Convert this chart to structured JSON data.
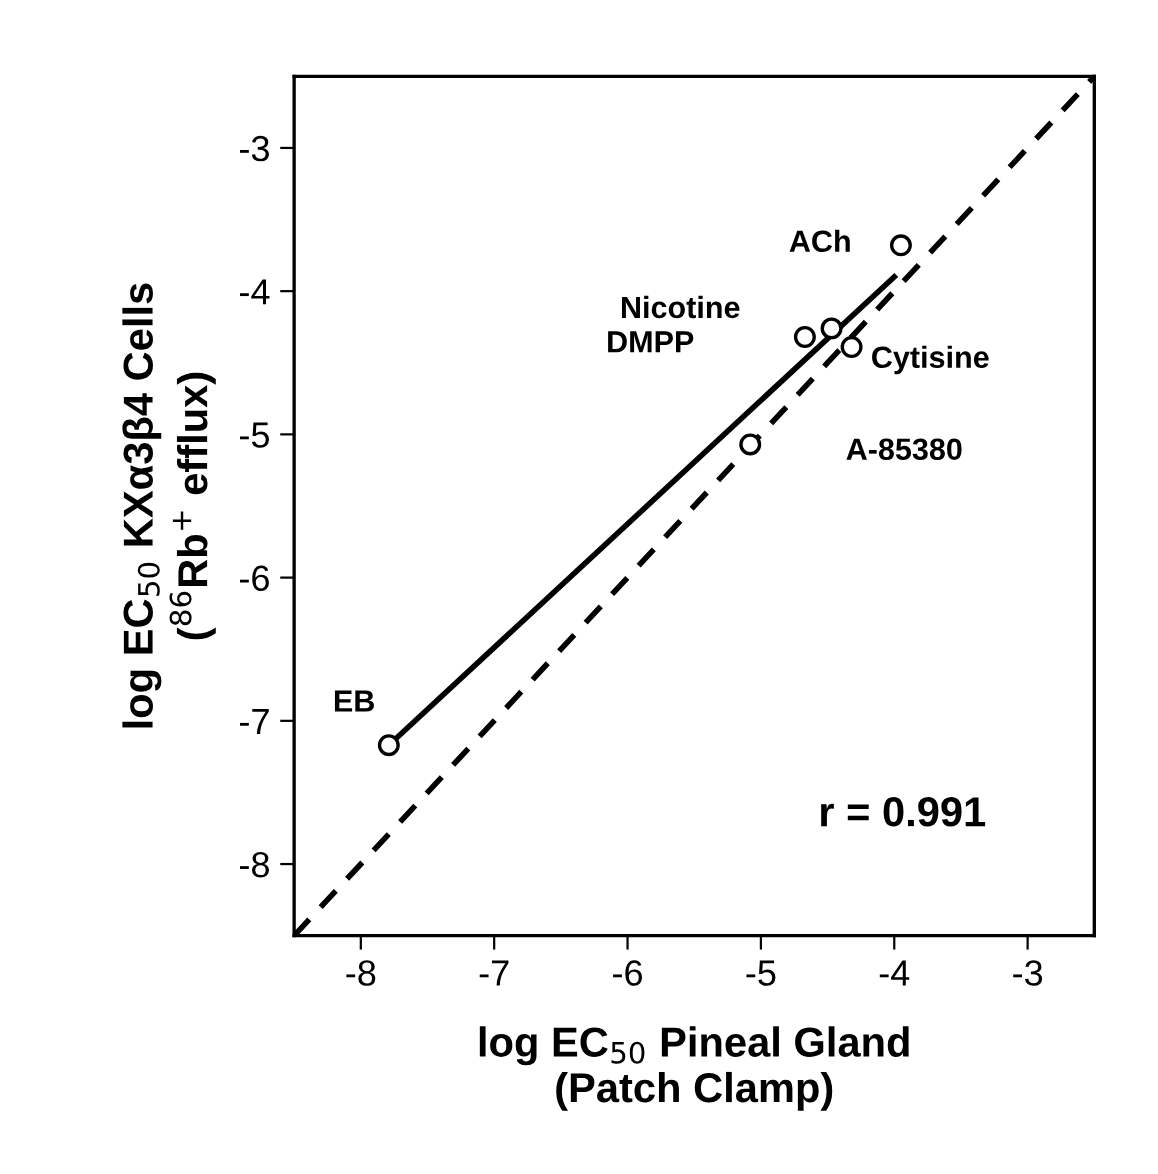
{
  "chart_data": {
    "type": "scatter",
    "xlabel": "log EC$_{50}$ Pineal Gland\n(Patch Clamp)",
    "ylabel": "log EC$_{50}$ KXα3β4 Cells\n($^{86}$Rb$^{+}$ efflux)",
    "xlim": [
      -8.5,
      -2.5
    ],
    "ylim": [
      -8.5,
      -2.5
    ],
    "xticks": [
      -8,
      -7,
      -6,
      -5,
      -4,
      -3
    ],
    "yticks": [
      -8,
      -7,
      -6,
      -5,
      -4,
      -3
    ],
    "grid": false,
    "legend": false,
    "series": [
      {
        "type": "line",
        "color": "#000000",
        "line_style": "dashed",
        "marker": "none",
        "x": [
          -8.5,
          -2.5
        ],
        "values": [
          -8.5,
          -2.5
        ]
      },
      {
        "type": "line",
        "color": "#000000",
        "line_style": "solid",
        "marker": "none",
        "x": [
          -7.79,
          -4.0
        ],
        "values": [
          -7.17,
          -3.9
        ]
      },
      {
        "type": "scatter",
        "color": "#000000",
        "marker": "circle",
        "x": [
          -7.79,
          -5.08,
          -4.67,
          -4.47,
          -4.32,
          -3.95
        ],
        "values": [
          -7.17,
          -5.07,
          -4.32,
          -4.26,
          -4.39,
          -3.68
        ]
      }
    ],
    "annotations": [
      "EB",
      "A-85380",
      "Nicotine",
      "DMPP",
      "Cytisine",
      "ACh",
      "r = 0.991"
    ]
  }
}
